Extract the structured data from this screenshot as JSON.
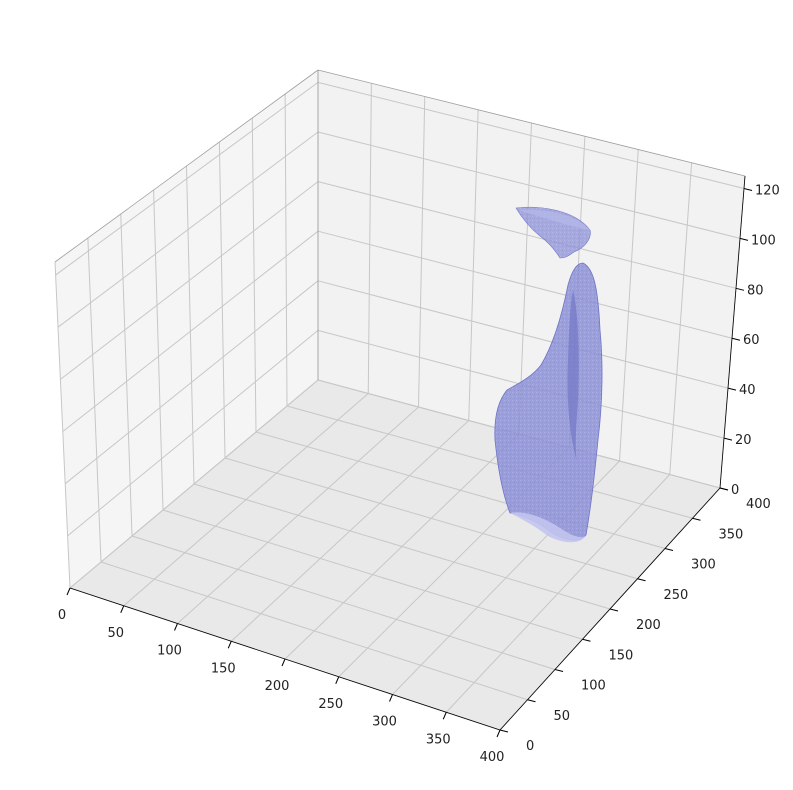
{
  "chart_data": {
    "type": "3d-surface",
    "title": "",
    "xlabel": "",
    "ylabel": "",
    "zlabel": "",
    "xlim": [
      0,
      400
    ],
    "ylim": [
      0,
      400
    ],
    "zlim": [
      0,
      125
    ],
    "x_ticks": [
      "0",
      "50",
      "100",
      "150",
      "200",
      "250",
      "300",
      "350",
      "400"
    ],
    "y_ticks": [
      "0",
      "50",
      "100",
      "150",
      "200",
      "250",
      "300",
      "350",
      "400"
    ],
    "z_ticks": [
      "0",
      "20",
      "40",
      "60",
      "80",
      "100",
      "120"
    ],
    "grid": true,
    "surface_color": "#8a8fd6",
    "surface_edge_color": "#6f74c4",
    "surfaces": [
      {
        "kind": "main-body",
        "approx_z_range": [
          0,
          95
        ]
      },
      {
        "kind": "upper-fragment",
        "approx_z_range": [
          98,
          115
        ]
      }
    ]
  }
}
